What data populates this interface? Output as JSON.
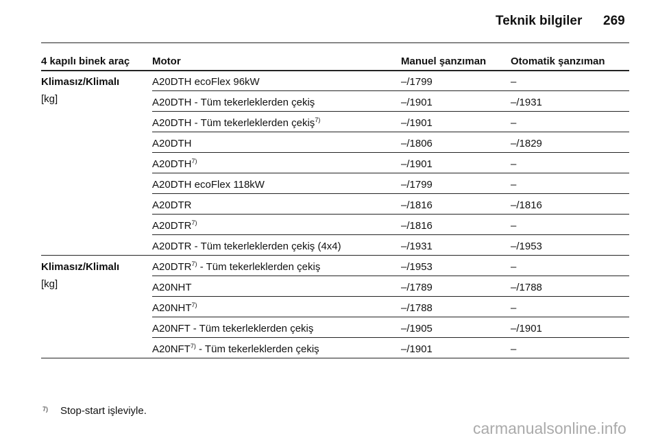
{
  "header": {
    "title": "Teknik bilgiler",
    "page": "269"
  },
  "table": {
    "columns": [
      "4 kapılı binek araç",
      "Motor",
      "Manuel şanzıman",
      "Otomatik şanzıman"
    ],
    "groups": [
      {
        "label": "Klimasız/Klimalı",
        "unit": "[kg]",
        "rows": [
          {
            "motor": {
              "name": "A20DTH ecoFlex 96kW"
            },
            "manual": "–/1799",
            "automatic": "–"
          },
          {
            "motor": {
              "name": "A20DTH - Tüm tekerleklerden çekiş"
            },
            "manual": "–/1901",
            "automatic": "–/1931"
          },
          {
            "motor": {
              "name": "A20DTH - Tüm tekerleklerden çekiş",
              "note": "7)"
            },
            "manual": "–/1901",
            "automatic": "–"
          },
          {
            "motor": {
              "name": "A20DTH"
            },
            "manual": "–/1806",
            "automatic": "–/1829"
          },
          {
            "motor": {
              "name": "A20DTH",
              "note": "7)"
            },
            "manual": "–/1901",
            "automatic": "–"
          },
          {
            "motor": {
              "name": "A20DTH ecoFlex 118kW"
            },
            "manual": "–/1799",
            "automatic": "–"
          },
          {
            "motor": {
              "name": "A20DTR"
            },
            "manual": "–/1816",
            "automatic": "–/1816"
          },
          {
            "motor": {
              "name": "A20DTR",
              "note": "7)"
            },
            "manual": "–/1816",
            "automatic": "–"
          },
          {
            "motor": {
              "name": "A20DTR - Tüm tekerleklerden çekiş (4x4)"
            },
            "manual": "–/1931",
            "automatic": "–/1953"
          }
        ]
      },
      {
        "label": "Klimasız/Klimalı",
        "unit": "[kg]",
        "rows": [
          {
            "motor": {
              "name": "A20DTR",
              "note": "7)",
              "rest": " - Tüm tekerleklerden çekiş"
            },
            "manual": "–/1953",
            "automatic": "–"
          },
          {
            "motor": {
              "name": "A20NHT"
            },
            "manual": "–/1789",
            "automatic": "–/1788"
          },
          {
            "motor": {
              "name": "A20NHT",
              "note": "7)"
            },
            "manual": "–/1788",
            "automatic": "–"
          },
          {
            "motor": {
              "name": "A20NFT - Tüm tekerleklerden çekiş"
            },
            "manual": "–/1905",
            "automatic": "–/1901"
          },
          {
            "motor": {
              "name": "A20NFT",
              "note": "7)",
              "rest": " - Tüm tekerleklerden çekiş"
            },
            "manual": "–/1901",
            "automatic": "–"
          }
        ]
      }
    ]
  },
  "footnote": {
    "marker": "7)",
    "text": "Stop-start işleviyle."
  },
  "watermark": "carmanualsonline.info"
}
